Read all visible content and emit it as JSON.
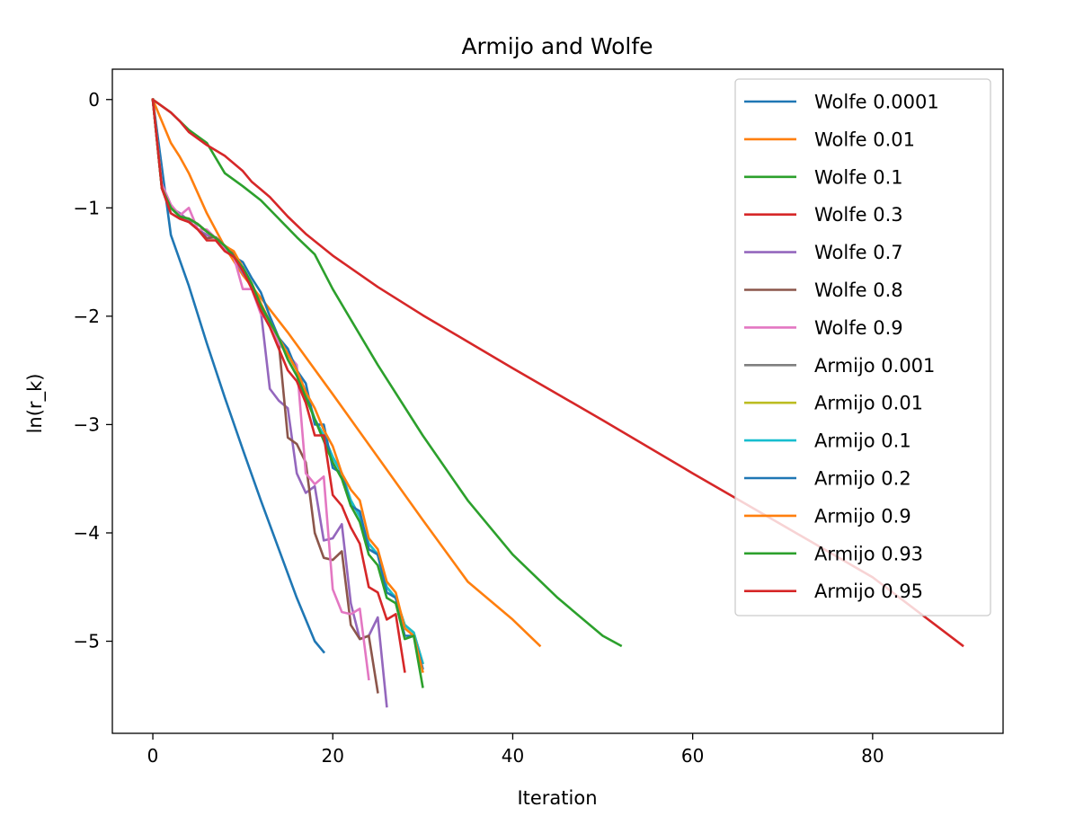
{
  "chart_data": {
    "type": "line",
    "title": "Armijo and Wolfe",
    "xlabel": "Iteration",
    "ylabel": "ln(r_k)",
    "xlim": [
      -4.5,
      94.5
    ],
    "ylim": [
      -5.85,
      0.28
    ],
    "xticks": [
      0,
      20,
      40,
      60,
      80
    ],
    "yticks": [
      0,
      -1,
      -2,
      -3,
      -4,
      -5
    ],
    "xtick_labels": [
      "0",
      "20",
      "40",
      "60",
      "80"
    ],
    "ytick_labels": [
      "0",
      "−1",
      "−2",
      "−3",
      "−4",
      "−5"
    ],
    "grid": false,
    "legend_position": "upper right",
    "series": [
      {
        "name": "Wolfe 0.0001",
        "color": "#1f77b4",
        "x": [
          0,
          2,
          4,
          6,
          8,
          10,
          12,
          14,
          16,
          18,
          19
        ],
        "y": [
          0,
          -1.25,
          -1.72,
          -2.25,
          -2.75,
          -3.23,
          -3.7,
          -4.15,
          -4.6,
          -5.0,
          -5.1
        ]
      },
      {
        "name": "Wolfe 0.01",
        "color": "#ff7f0e",
        "x": [
          0,
          2,
          3,
          4,
          6,
          8,
          10,
          12,
          15,
          20,
          25,
          30,
          35,
          40,
          43
        ],
        "y": [
          0,
          -0.4,
          -0.53,
          -0.68,
          -1.05,
          -1.36,
          -1.62,
          -1.83,
          -2.15,
          -2.72,
          -3.3,
          -3.88,
          -4.45,
          -4.8,
          -5.04
        ]
      },
      {
        "name": "Wolfe 0.1",
        "color": "#2ca02c",
        "x": [
          0,
          2,
          4,
          6,
          8,
          10,
          12,
          14,
          16,
          18,
          20,
          25,
          30,
          35,
          40,
          45,
          50,
          52
        ],
        "y": [
          0,
          -0.12,
          -0.28,
          -0.4,
          -0.68,
          -0.8,
          -0.93,
          -1.1,
          -1.27,
          -1.43,
          -1.75,
          -2.45,
          -3.1,
          -3.7,
          -4.2,
          -4.6,
          -4.95,
          -5.04
        ]
      },
      {
        "name": "Wolfe 0.3",
        "color": "#d62728",
        "x": [
          0,
          2,
          3,
          4,
          6,
          8,
          10,
          11,
          12,
          13,
          15,
          17,
          20,
          25,
          30,
          40,
          50,
          60,
          70,
          80,
          90
        ],
        "y": [
          0,
          -0.12,
          -0.2,
          -0.3,
          -0.42,
          -0.52,
          -0.66,
          -0.76,
          -0.83,
          -0.9,
          -1.08,
          -1.24,
          -1.44,
          -1.73,
          -1.99,
          -2.48,
          -2.96,
          -3.45,
          -3.93,
          -4.41,
          -5.04
        ]
      },
      {
        "name": "Wolfe 0.7",
        "color": "#9467bd",
        "x": [
          0,
          1,
          2,
          3,
          4,
          5,
          6,
          7,
          8,
          9,
          10,
          11,
          12,
          13,
          14,
          15,
          16,
          17,
          18,
          19,
          20,
          21,
          22,
          23,
          24,
          25,
          26
        ],
        "y": [
          0,
          -0.8,
          -1.0,
          -1.05,
          -1.12,
          -1.2,
          -1.25,
          -1.28,
          -1.35,
          -1.45,
          -1.6,
          -1.72,
          -1.95,
          -2.67,
          -2.78,
          -2.85,
          -3.45,
          -3.63,
          -3.57,
          -4.07,
          -4.05,
          -3.92,
          -4.65,
          -4.98,
          -4.95,
          -4.78,
          -5.6
        ]
      },
      {
        "name": "Wolfe 0.8",
        "color": "#8c564b",
        "x": [
          0,
          1,
          2,
          3,
          4,
          5,
          6,
          7,
          8,
          9,
          10,
          11,
          12,
          13,
          14,
          15,
          16,
          17,
          18,
          19,
          20,
          21,
          22,
          23,
          24,
          25
        ],
        "y": [
          0,
          -0.82,
          -1.05,
          -1.1,
          -1.13,
          -1.2,
          -1.28,
          -1.27,
          -1.35,
          -1.43,
          -1.58,
          -1.73,
          -1.93,
          -2.06,
          -2.25,
          -3.12,
          -3.18,
          -3.35,
          -4.0,
          -4.23,
          -4.25,
          -4.17,
          -4.85,
          -4.98,
          -4.95,
          -5.47
        ]
      },
      {
        "name": "Wolfe 0.9",
        "color": "#e377c2",
        "x": [
          0,
          1,
          2,
          3,
          4,
          5,
          6,
          7,
          8,
          9,
          10,
          11,
          12,
          13,
          14,
          15,
          16,
          17,
          18,
          19,
          20,
          21,
          22,
          23,
          24
        ],
        "y": [
          0,
          -0.78,
          -0.97,
          -1.07,
          -1.0,
          -1.2,
          -1.2,
          -1.28,
          -1.38,
          -1.45,
          -1.75,
          -1.75,
          -1.98,
          -2.05,
          -2.25,
          -2.35,
          -2.45,
          -3.45,
          -3.55,
          -3.48,
          -4.52,
          -4.73,
          -4.75,
          -4.7,
          -5.35
        ]
      },
      {
        "name": "Armijo 0.001",
        "color": "#7f7f7f",
        "x": [
          0,
          1,
          2,
          3,
          4,
          5,
          6,
          7,
          8,
          9,
          10,
          11,
          12,
          13,
          14,
          15,
          16,
          17,
          18,
          19,
          20,
          21,
          22,
          23,
          24,
          25,
          26,
          27,
          28,
          29,
          30
        ],
        "y": [
          0,
          -0.82,
          -1.0,
          -1.08,
          -1.1,
          -1.15,
          -1.22,
          -1.28,
          -1.35,
          -1.45,
          -1.55,
          -1.7,
          -1.9,
          -2.05,
          -2.2,
          -2.35,
          -2.5,
          -2.7,
          -2.95,
          -3.1,
          -3.3,
          -3.45,
          -3.7,
          -3.85,
          -4.1,
          -4.2,
          -4.5,
          -4.6,
          -4.85,
          -4.92,
          -5.2
        ]
      },
      {
        "name": "Armijo 0.01",
        "color": "#bcbd22",
        "x": [
          0,
          1,
          2,
          3,
          4,
          5,
          6,
          7,
          8,
          9,
          10,
          11,
          12,
          13,
          14,
          15,
          16,
          17,
          18,
          19,
          20,
          21,
          22,
          23,
          24,
          25,
          26,
          27,
          28,
          29,
          30
        ],
        "y": [
          0,
          -0.82,
          -1.0,
          -1.08,
          -1.1,
          -1.15,
          -1.22,
          -1.28,
          -1.35,
          -1.45,
          -1.55,
          -1.7,
          -1.9,
          -2.05,
          -2.2,
          -2.35,
          -2.5,
          -2.7,
          -2.95,
          -3.1,
          -3.3,
          -3.45,
          -3.7,
          -3.85,
          -4.1,
          -4.2,
          -4.5,
          -4.6,
          -4.85,
          -4.92,
          -5.2
        ]
      },
      {
        "name": "Armijo 0.1",
        "color": "#17becf",
        "x": [
          0,
          1,
          2,
          3,
          4,
          5,
          6,
          7,
          8,
          9,
          10,
          11,
          12,
          13,
          14,
          15,
          16,
          17,
          18,
          19,
          20,
          21,
          22,
          23,
          24,
          25,
          26,
          27,
          28,
          29,
          30
        ],
        "y": [
          0,
          -0.82,
          -1.0,
          -1.08,
          -1.1,
          -1.15,
          -1.22,
          -1.28,
          -1.35,
          -1.45,
          -1.55,
          -1.7,
          -1.9,
          -2.05,
          -2.2,
          -2.35,
          -2.5,
          -2.7,
          -2.95,
          -3.1,
          -3.3,
          -3.45,
          -3.7,
          -3.85,
          -4.1,
          -4.2,
          -4.5,
          -4.6,
          -4.85,
          -4.92,
          -5.2
        ]
      },
      {
        "name": "Armijo 0.2",
        "color": "#1f77b4",
        "x": [
          0,
          1,
          2,
          3,
          4,
          5,
          6,
          7,
          8,
          9,
          10,
          11,
          12,
          13,
          14,
          15,
          16,
          17,
          18,
          19,
          20,
          21,
          22,
          23,
          24,
          25,
          26,
          27,
          28,
          29,
          30
        ],
        "y": [
          0,
          -0.82,
          -1.0,
          -1.08,
          -1.1,
          -1.15,
          -1.22,
          -1.28,
          -1.35,
          -1.45,
          -1.5,
          -1.65,
          -1.78,
          -2.0,
          -2.2,
          -2.3,
          -2.5,
          -2.62,
          -3.0,
          -3.0,
          -3.4,
          -3.45,
          -3.75,
          -3.8,
          -4.15,
          -4.2,
          -4.55,
          -4.6,
          -4.95,
          -4.95,
          -5.25
        ]
      },
      {
        "name": "Armijo 0.9",
        "color": "#ff7f0e",
        "x": [
          0,
          1,
          2,
          3,
          4,
          5,
          6,
          7,
          8,
          9,
          10,
          11,
          12,
          13,
          14,
          15,
          16,
          17,
          18,
          19,
          20,
          21,
          22,
          23,
          24,
          25,
          26,
          27,
          28,
          29,
          30
        ],
        "y": [
          0,
          -0.82,
          -1.0,
          -1.08,
          -1.1,
          -1.15,
          -1.22,
          -1.28,
          -1.35,
          -1.4,
          -1.55,
          -1.7,
          -1.88,
          -2.05,
          -2.2,
          -2.35,
          -2.5,
          -2.7,
          -2.85,
          -3.05,
          -3.2,
          -3.45,
          -3.6,
          -3.7,
          -4.05,
          -4.15,
          -4.45,
          -4.55,
          -4.88,
          -4.95,
          -5.28
        ]
      },
      {
        "name": "Armijo 0.93",
        "color": "#2ca02c",
        "x": [
          0,
          1,
          2,
          3,
          4,
          5,
          6,
          7,
          8,
          9,
          10,
          11,
          12,
          13,
          14,
          15,
          16,
          17,
          18,
          19,
          20,
          21,
          22,
          23,
          24,
          25,
          26,
          27,
          28,
          29,
          30
        ],
        "y": [
          0,
          -0.82,
          -1.0,
          -1.08,
          -1.1,
          -1.15,
          -1.22,
          -1.28,
          -1.35,
          -1.45,
          -1.55,
          -1.7,
          -1.9,
          -2.05,
          -2.2,
          -2.4,
          -2.55,
          -2.75,
          -2.95,
          -3.15,
          -3.35,
          -3.5,
          -3.75,
          -3.9,
          -4.2,
          -4.3,
          -4.6,
          -4.65,
          -4.98,
          -4.95,
          -5.42
        ]
      },
      {
        "name": "Armijo 0.95",
        "color": "#d62728",
        "x": [
          0,
          1,
          2,
          3,
          4,
          5,
          6,
          7,
          8,
          9,
          10,
          11,
          12,
          13,
          14,
          15,
          16,
          17,
          18,
          19,
          20,
          21,
          22,
          23,
          24,
          25,
          26,
          27,
          28
        ],
        "y": [
          0,
          -0.82,
          -1.05,
          -1.1,
          -1.13,
          -1.2,
          -1.3,
          -1.3,
          -1.4,
          -1.45,
          -1.58,
          -1.75,
          -1.95,
          -2.1,
          -2.3,
          -2.5,
          -2.6,
          -2.8,
          -3.1,
          -3.1,
          -3.65,
          -3.75,
          -3.95,
          -4.1,
          -4.5,
          -4.55,
          -4.8,
          -4.75,
          -5.28
        ]
      }
    ]
  }
}
